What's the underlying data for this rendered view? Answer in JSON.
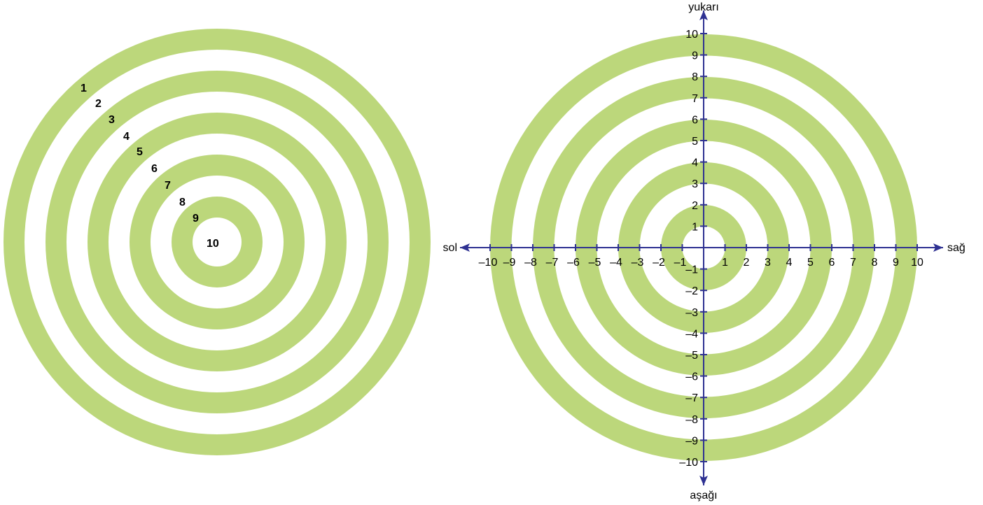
{
  "left_target": {
    "ring_color": "#bcd77b",
    "background_color": "#ffffff",
    "ring_labels": [
      "1",
      "2",
      "3",
      "4",
      "5",
      "6",
      "7",
      "8",
      "9",
      "10"
    ]
  },
  "right_target": {
    "ring_color": "#bcd77b",
    "axis_color": "#2e3192",
    "axes": {
      "x_min": -10,
      "x_max": 10,
      "y_min": -10,
      "y_max": 10,
      "ticks": [
        -10,
        -9,
        -8,
        -7,
        -6,
        -5,
        -4,
        -3,
        -2,
        -1,
        1,
        2,
        3,
        4,
        5,
        6,
        7,
        8,
        9,
        10
      ]
    },
    "directions": {
      "up": "yukarı",
      "down": "aşağı",
      "left": "sol",
      "right": "sağ"
    }
  }
}
